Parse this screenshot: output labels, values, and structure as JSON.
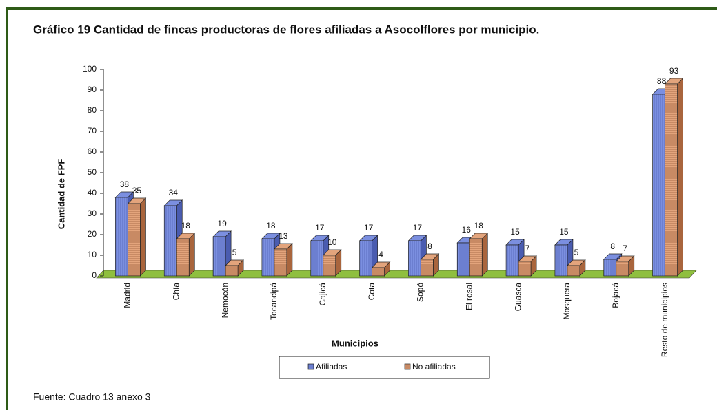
{
  "chart_data": {
    "type": "bar3d",
    "title": "Gráfico 19 Cantidad de fincas productoras de flores afiliadas a Asocolflores por municipio.",
    "xlabel": "Municipios",
    "ylabel": "Cantidad de FPF",
    "categories": [
      "Madrid",
      "Chía",
      "Nemocón",
      "Tocancipá",
      "Cajicá",
      "Cota",
      "Sopó",
      "El rosal",
      "Guasca",
      "Mosquera",
      "Bojacá",
      "Resto de municipios"
    ],
    "series": [
      {
        "name": "Afiliadas",
        "color": "#7b8fe0",
        "values": [
          38,
          34,
          19,
          18,
          17,
          17,
          17,
          16,
          15,
          15,
          8,
          88
        ]
      },
      {
        "name": "No afiliadas",
        "color": "#e3a47c",
        "values": [
          35,
          18,
          5,
          13,
          10,
          4,
          8,
          18,
          7,
          5,
          7,
          93
        ]
      }
    ],
    "ylim": [
      0,
      100
    ],
    "yticks": [
      0,
      10,
      20,
      30,
      40,
      50,
      60,
      70,
      80,
      90,
      100
    ],
    "legend": "bottom",
    "source": "Fuente: Cuadro  13 anexo  3"
  }
}
